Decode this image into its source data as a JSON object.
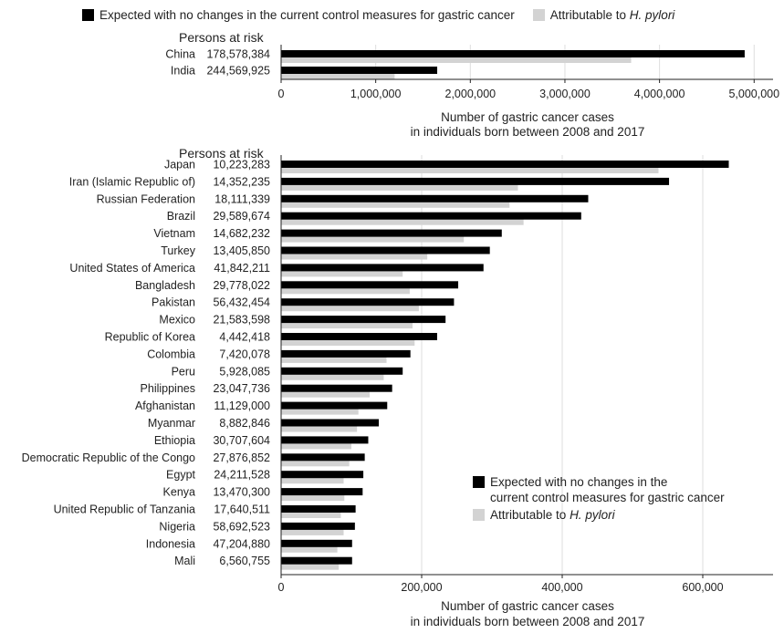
{
  "legend": {
    "expected": "Expected with no changes in the current control measures for gastric cancer",
    "expected_wrapped": "Expected with no changes in the\ncurrent control measures for gastric cancer",
    "hpylori_prefix": "Attributable to ",
    "hpylori_italic": "H. pylori"
  },
  "colors": {
    "expected": "#000000",
    "hpylori": "#d3d3d3"
  },
  "chart_data": [
    {
      "type": "bar",
      "orientation": "horizontal",
      "header": "Persons at risk",
      "xlabel": [
        "Number of gastric cancer cases",
        "in individuals born between 2008 and 2017"
      ],
      "xlim": [
        0,
        5200000
      ],
      "xticks": [
        0,
        1000000,
        2000000,
        3000000,
        4000000,
        5000000
      ],
      "xtick_labels": [
        "0",
        "1,000,000",
        "2,000,000",
        "3,000,000",
        "4,000,000",
        "5,000,000"
      ],
      "categories": [
        "China",
        "India"
      ],
      "persons_at_risk": [
        "178,578,384",
        "244,569,925"
      ],
      "series": [
        {
          "name": "Expected with no changes in the current control measures for gastric cancer",
          "values": [
            4900000,
            1650000
          ]
        },
        {
          "name": "Attributable to H. pylori",
          "values": [
            3700000,
            1200000
          ]
        }
      ],
      "legend_position": "top"
    },
    {
      "type": "bar",
      "orientation": "horizontal",
      "header": "Persons at risk",
      "xlabel": [
        "Number of gastric cancer cases",
        "in individuals born between 2008 and 2017"
      ],
      "xlim": [
        0,
        700000
      ],
      "xticks": [
        0,
        200000,
        400000,
        600000
      ],
      "xtick_labels": [
        "0",
        "200,000",
        "400,000",
        "600,000"
      ],
      "categories": [
        "Japan",
        "Iran (Islamic Republic of)",
        "Russian Federation",
        "Brazil",
        "Vietnam",
        "Turkey",
        "United States of America",
        "Bangladesh",
        "Pakistan",
        "Mexico",
        "Republic of Korea",
        "Colombia",
        "Peru",
        "Philippines",
        "Afghanistan",
        "Myanmar",
        "Ethiopia",
        "Democratic Republic of the Congo",
        "Egypt",
        "Kenya",
        "United Republic of Tanzania",
        "Nigeria",
        "Indonesia",
        "Mali"
      ],
      "persons_at_risk": [
        "10,223,283",
        "14,352,235",
        "18,111,339",
        "29,589,674",
        "14,682,232",
        "13,405,850",
        "41,842,211",
        "29,778,022",
        "56,432,454",
        "21,583,598",
        "4,442,418",
        "7,420,078",
        "5,928,085",
        "23,047,736",
        "11,129,000",
        "8,882,846",
        "30,707,604",
        "27,876,852",
        "24,211,528",
        "13,470,300",
        "17,640,511",
        "58,692,523",
        "47,204,880",
        "6,560,755"
      ],
      "series": [
        {
          "name": "Expected with no changes in the current control measures for gastric cancer",
          "values": [
            637000,
            552000,
            437000,
            427000,
            314000,
            297000,
            288000,
            252000,
            246000,
            234000,
            222000,
            184000,
            173000,
            158000,
            151000,
            139000,
            124000,
            119000,
            117000,
            116000,
            106000,
            105000,
            101000,
            101000
          ]
        },
        {
          "name": "Attributable to H. pylori",
          "values": [
            537000,
            337000,
            325000,
            345000,
            260000,
            208000,
            173000,
            183000,
            196000,
            187000,
            190000,
            150000,
            146000,
            126000,
            110000,
            108000,
            100000,
            97000,
            89000,
            90000,
            85000,
            89000,
            80000,
            82000
          ]
        }
      ],
      "legend_position": "bottom-right"
    }
  ]
}
